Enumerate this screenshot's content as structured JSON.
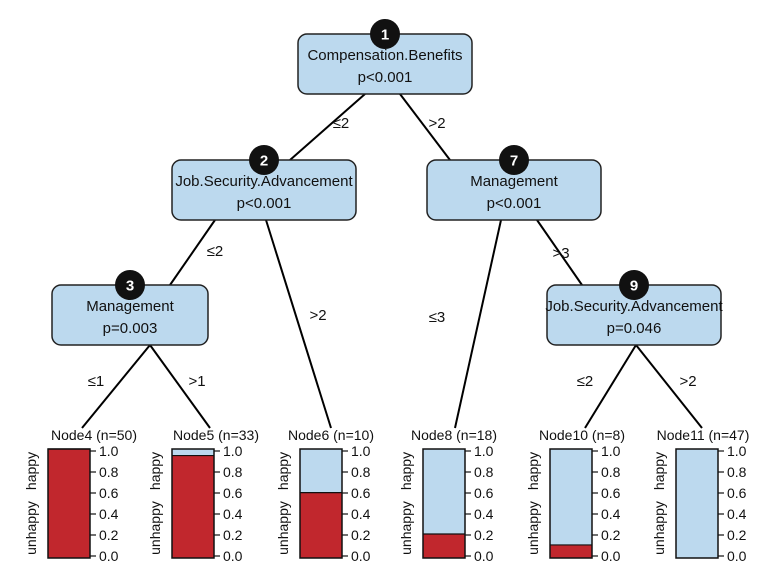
{
  "colors": {
    "node_fill": "#bcd9ee",
    "happy": "#bcd9ee",
    "unhappy": "#c1272d",
    "badge": "#111111"
  },
  "scale_ticks": [
    "1.0",
    "0.8",
    "0.6",
    "0.4",
    "0.2",
    "0.0"
  ],
  "class_labels": {
    "top": "happy",
    "bottom": "unhappy"
  },
  "inner_nodes": [
    {
      "id": 1,
      "badge": "1",
      "variable": "Compensation.Benefits",
      "pvalue": "p<0.001"
    },
    {
      "id": 2,
      "badge": "2",
      "variable": "Job.Security.Advancement",
      "pvalue": "p<0.001"
    },
    {
      "id": 7,
      "badge": "7",
      "variable": "Management",
      "pvalue": "p<0.001"
    },
    {
      "id": 3,
      "badge": "3",
      "variable": "Management",
      "pvalue": "p=0.003"
    },
    {
      "id": 9,
      "badge": "9",
      "variable": "Job.Security.Advancement",
      "pvalue": "p=0.046"
    }
  ],
  "edges": [
    {
      "from": 1,
      "to": 2,
      "label": "≤2"
    },
    {
      "from": 1,
      "to": 7,
      "label": ">2"
    },
    {
      "from": 2,
      "to": 3,
      "label": "≤2"
    },
    {
      "from": 2,
      "to": 6,
      "label": ">2"
    },
    {
      "from": 7,
      "to": 8,
      "label": "≤3"
    },
    {
      "from": 7,
      "to": 9,
      "label": ">3"
    },
    {
      "from": 3,
      "to": 4,
      "label": "≤1"
    },
    {
      "from": 3,
      "to": 5,
      "label": ">1"
    },
    {
      "from": 9,
      "to": 10,
      "label": "≤2"
    },
    {
      "from": 9,
      "to": 11,
      "label": ">2"
    }
  ],
  "leaves": [
    {
      "id": 4,
      "title": "Node4 (n=50)",
      "unhappy": 1.0
    },
    {
      "id": 5,
      "title": "Node5 (n=33)",
      "unhappy": 0.94
    },
    {
      "id": 6,
      "title": "Node6 (n=10)",
      "unhappy": 0.6
    },
    {
      "id": 8,
      "title": "Node8 (n=18)",
      "unhappy": 0.22
    },
    {
      "id": 10,
      "title": "Node10 (n=8)",
      "unhappy": 0.12
    },
    {
      "id": 11,
      "title": "Node11 (n=47)",
      "unhappy": 0.0
    }
  ]
}
